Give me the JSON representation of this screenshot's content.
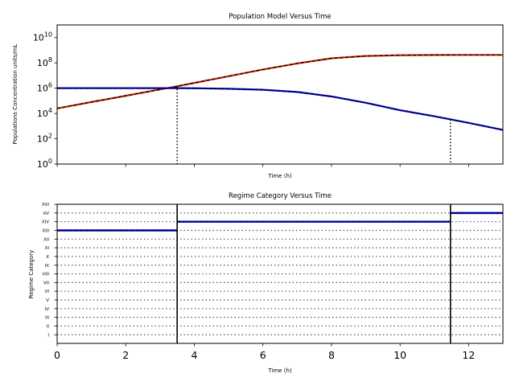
{
  "chart_data": [
    {
      "type": "line",
      "title": "Population Model Versus Time",
      "xlabel": "Time (h)",
      "ylabel": "Populations Concentration units/mL",
      "xlim": [
        0,
        13
      ],
      "ylim": [
        1,
        100000000000
      ],
      "yscale": "log",
      "y_tick_labels": [
        "10^0",
        "10^2",
        "10^4",
        "10^6",
        "10^8",
        "10^10"
      ],
      "y_tick_values": [
        1,
        100,
        10000,
        1000000,
        100000000,
        10000000000
      ],
      "x_ticks_shown": [
        0,
        2,
        4,
        6,
        8,
        10,
        12
      ],
      "x_tick_labels_visible": false,
      "series": [
        {
          "color": "#cc2200",
          "overlay_color": "#000000",
          "x": [
            0,
            1,
            2,
            3,
            3.5,
            4,
            4.5,
            5,
            6,
            7,
            8,
            9,
            10,
            11,
            12,
            13
          ],
          "y": [
            25000,
            80000,
            250000,
            800000,
            1400000,
            2600000,
            4800000,
            8800000,
            30000000,
            90000000,
            230000000,
            350000000,
            400000000,
            420000000,
            425000000,
            425000000
          ]
        },
        {
          "color": "#0000cc",
          "overlay_color": "#000000",
          "x": [
            0,
            1,
            2,
            3,
            3.5,
            4,
            5,
            6,
            7,
            8,
            9,
            10,
            11,
            11.47,
            12,
            13
          ],
          "y": [
            1000000,
            1000000,
            1000000,
            1000000,
            1000000,
            980000,
            900000,
            750000,
            500000,
            220000,
            70000,
            18000,
            6000,
            3400,
            1800,
            500
          ]
        }
      ],
      "vlines": [
        {
          "x": 3.5,
          "y_top": 1500000
        },
        {
          "x": 11.47,
          "y_top": 3400
        }
      ]
    },
    {
      "type": "step",
      "title": "Regime Category Versus Time",
      "xlabel": "Time (h)",
      "ylabel": "Regime Category",
      "xlim": [
        0,
        13
      ],
      "ylim": [
        0,
        16
      ],
      "x_ticks": [
        0,
        2,
        4,
        6,
        8,
        10,
        12
      ],
      "x_tick_labels": [
        "0",
        "2",
        "4",
        "6",
        "8",
        "10",
        "12"
      ],
      "y_tick_labels": [
        "I",
        "II",
        "III",
        "IV",
        "V",
        "VI",
        "VII",
        "VIII",
        "IX",
        "X",
        "XI",
        "XII",
        "XIII",
        "XIV",
        "XV",
        "XVI"
      ],
      "segments": [
        {
          "x0": 0,
          "x1": 3.5,
          "level": 13
        },
        {
          "x0": 3.5,
          "x1": 11.47,
          "level": 14
        },
        {
          "x0": 11.47,
          "x1": 13,
          "level": 15
        }
      ],
      "vlines": [
        3.5,
        11.47
      ],
      "line_color": "#0000cc"
    }
  ]
}
